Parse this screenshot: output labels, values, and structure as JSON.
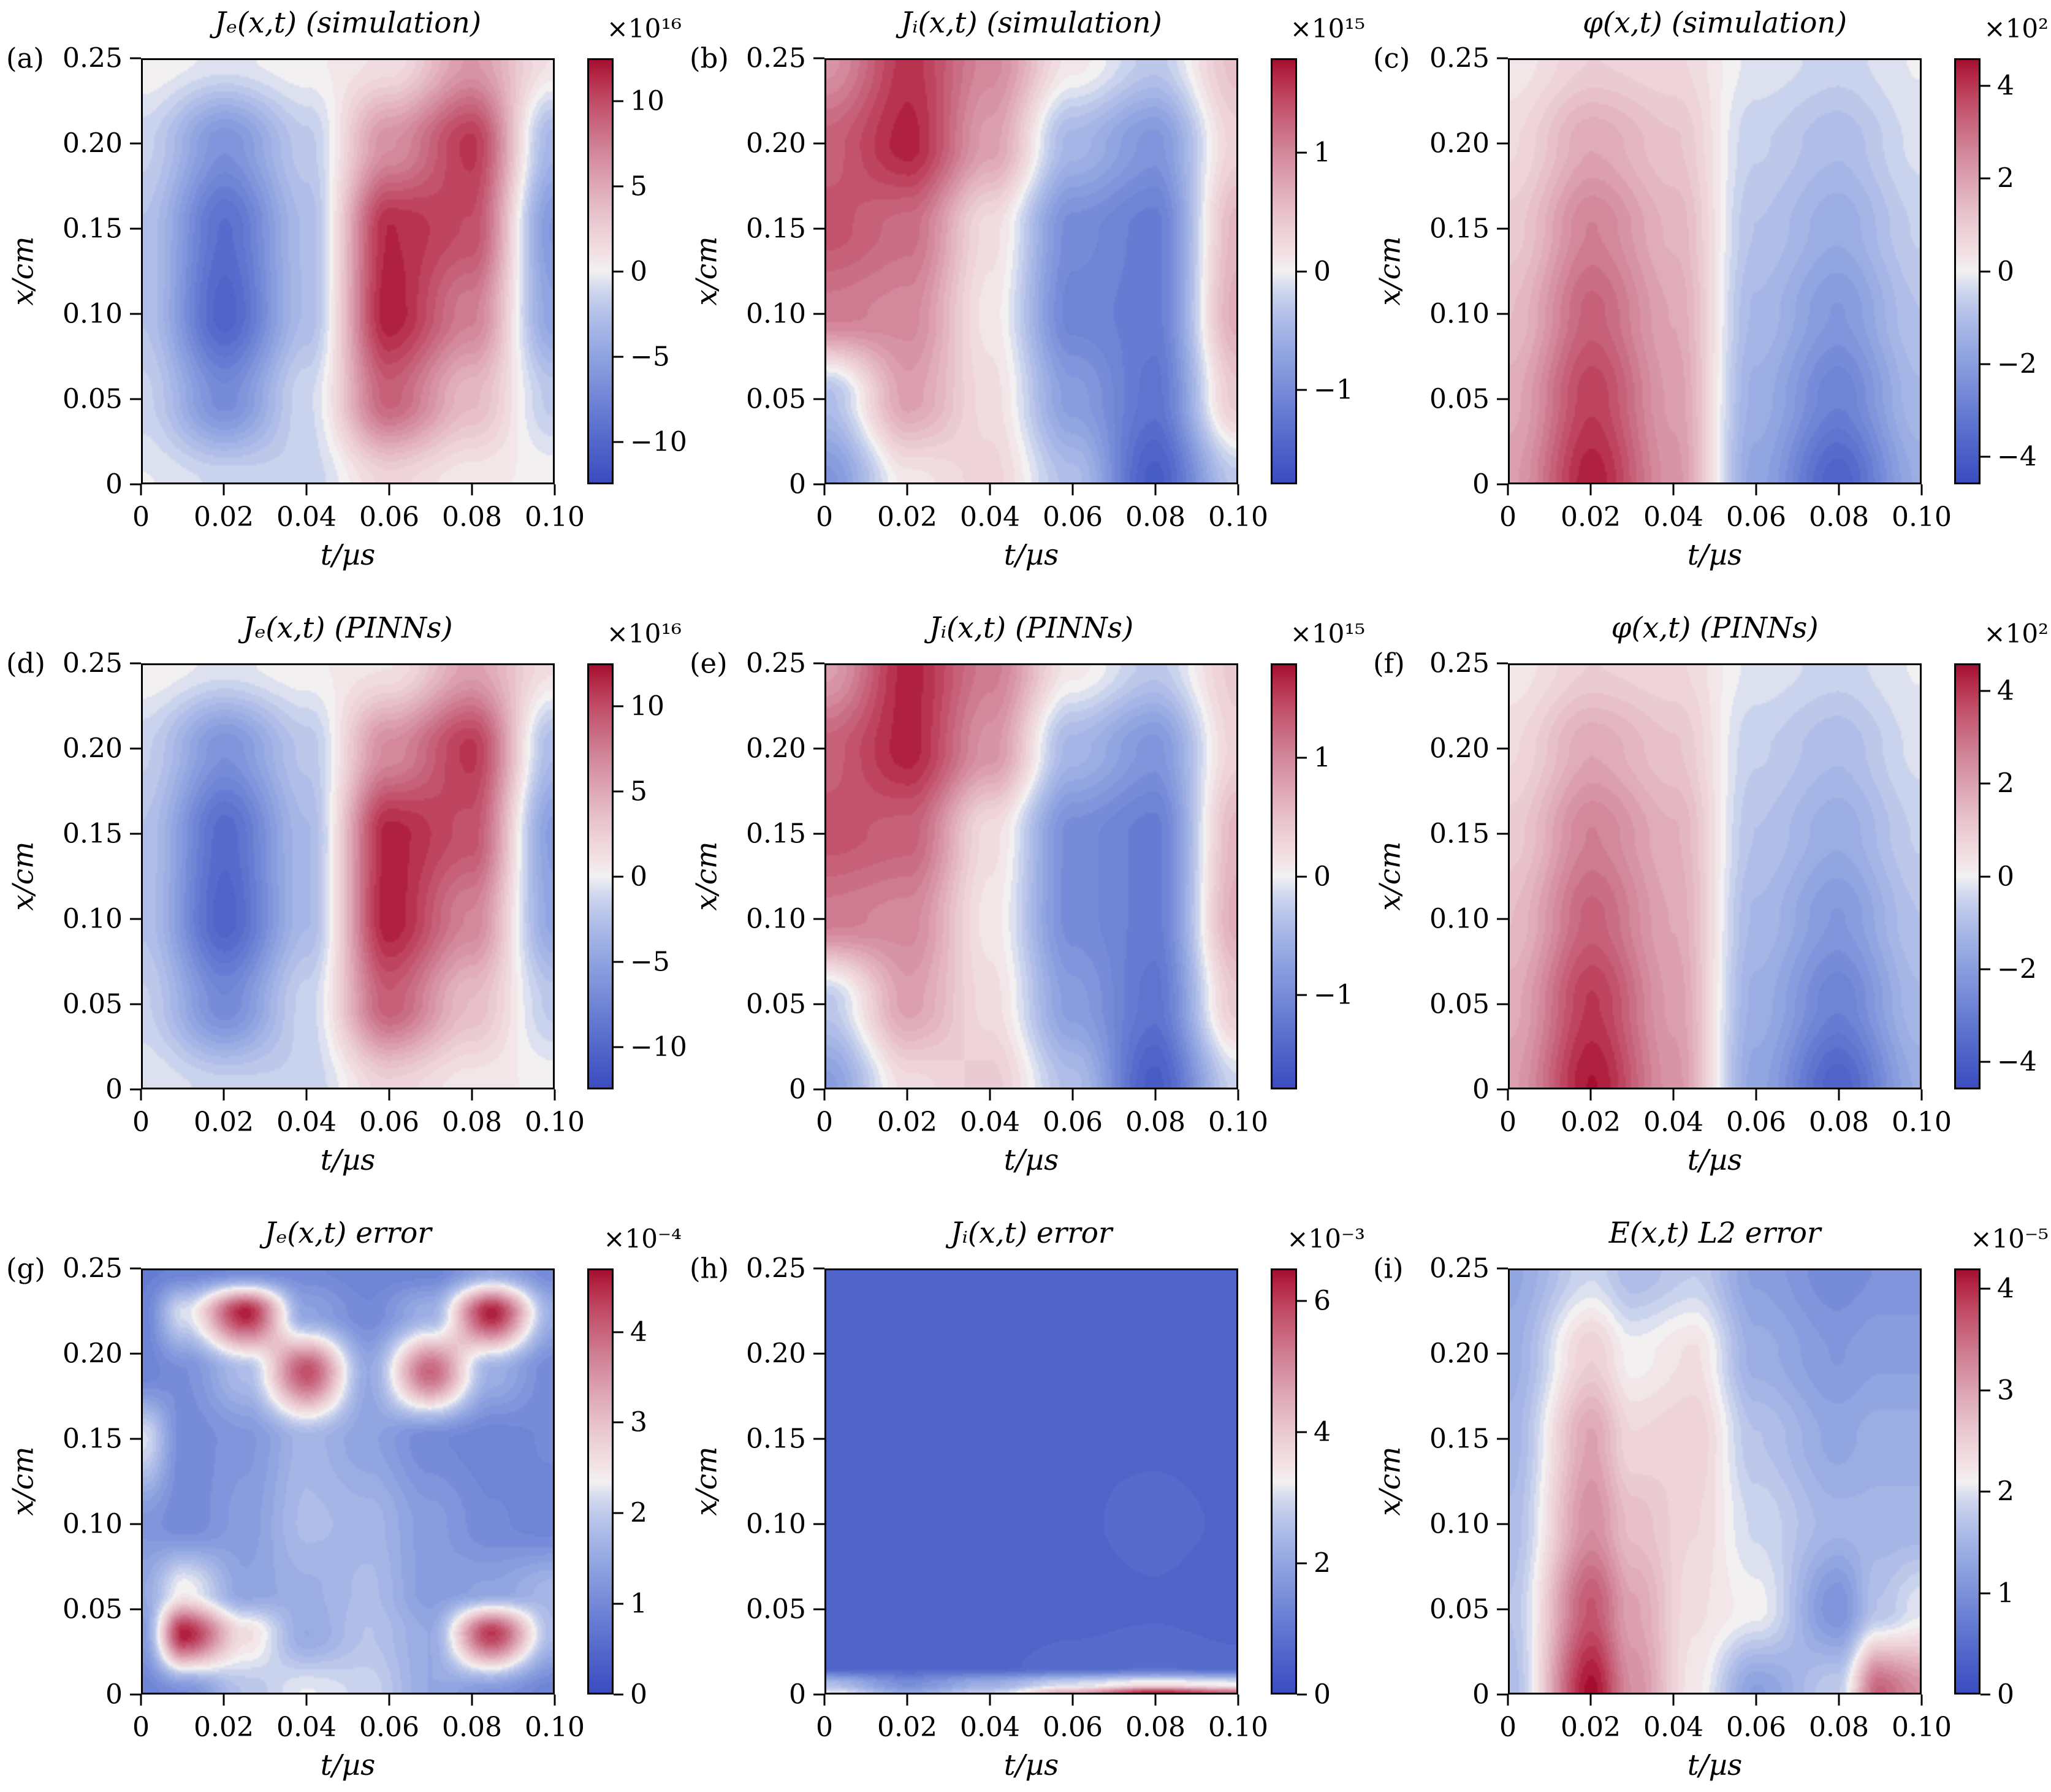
{
  "figure": {
    "axis_x_label": "t/µs",
    "axis_y_label": "x/cm",
    "x_tick_labels": [
      "0",
      "0.02",
      "0.04",
      "0.06",
      "0.08",
      "0.10"
    ],
    "x_tick_values": [
      0,
      0.02,
      0.04,
      0.06,
      0.08,
      0.1
    ],
    "y_tick_labels": [
      "0.25",
      "0.20",
      "0.15",
      "0.10",
      "0.05",
      "0"
    ],
    "y_tick_values": [
      0.25,
      0.2,
      0.15,
      0.1,
      0.05,
      0
    ],
    "x_range": [
      0,
      0.1
    ],
    "y_range": [
      0,
      0.25
    ],
    "colormap": {
      "low": "#3b4cc0",
      "mid": "#f2f0f1",
      "high": "#a50e30"
    }
  },
  "chart_data": [
    {
      "id": "a",
      "label": "(a)",
      "title": "Jₑ(x,t) (simulation)",
      "scale_label": "×10¹⁶",
      "type": "heatmap",
      "units_exponent": 16,
      "clim": [
        -12.5,
        12.5
      ],
      "colorbar_ticks": [
        {
          "label": "10",
          "value": 10
        },
        {
          "label": "5",
          "value": 5
        },
        {
          "label": "0",
          "value": 0
        },
        {
          "label": "−5",
          "value": -5
        },
        {
          "label": "−10",
          "value": -10
        }
      ],
      "x": [
        0,
        0.02,
        0.04,
        0.06,
        0.08,
        0.1
      ],
      "y": [
        0.25,
        0.2,
        0.15,
        0.1,
        0.05,
        0
      ],
      "values": [
        [
          0.3,
          -0.6,
          0.2,
          1.2,
          6,
          1
        ],
        [
          -1.5,
          -6.5,
          -2,
          6.5,
          11,
          -3.5
        ],
        [
          -2.5,
          -9.5,
          -3,
          11.5,
          10,
          -6
        ],
        [
          -2.5,
          -10.5,
          -3,
          12,
          7.5,
          -5
        ],
        [
          -1.5,
          -7,
          -1.2,
          9,
          4,
          -2
        ],
        [
          -0.3,
          -1.2,
          -1.5,
          2,
          0.5,
          0.2
        ]
      ]
    },
    {
      "id": "b",
      "label": "(b)",
      "title": "Jᵢ(x,t) (simulation)",
      "scale_label": "×10¹⁵",
      "type": "heatmap",
      "units_exponent": 15,
      "clim": [
        -1.8,
        1.8
      ],
      "colorbar_ticks": [
        {
          "label": "1",
          "value": 1
        },
        {
          "label": "0",
          "value": 0
        },
        {
          "label": "−1",
          "value": -1
        }
      ],
      "x": [
        0,
        0.02,
        0.04,
        0.06,
        0.08,
        0.1
      ],
      "y": [
        0.25,
        0.2,
        0.15,
        0.1,
        0.05,
        0
      ],
      "values": [
        [
          0.9,
          1.6,
          1.0,
          0.1,
          -0.3,
          0.5
        ],
        [
          1.3,
          1.7,
          0.8,
          -0.5,
          -0.9,
          0.3
        ],
        [
          1.4,
          1.2,
          0.2,
          -1.0,
          -1.2,
          0.6
        ],
        [
          1.1,
          1.0,
          0.1,
          -1.1,
          -1.2,
          0.7
        ],
        [
          -0.4,
          0.8,
          0.2,
          -0.8,
          -1.3,
          0.4
        ],
        [
          -0.9,
          0.1,
          0.3,
          -0.4,
          -1.6,
          -0.3
        ]
      ]
    },
    {
      "id": "c",
      "label": "(c)",
      "title": "φ(x,t) (simulation)",
      "scale_label": "×10²",
      "type": "heatmap",
      "units_exponent": 2,
      "clim": [
        -4.6,
        4.6
      ],
      "colorbar_ticks": [
        {
          "label": "4",
          "value": 4
        },
        {
          "label": "2",
          "value": 2
        },
        {
          "label": "0",
          "value": 0
        },
        {
          "label": "−2",
          "value": -2
        },
        {
          "label": "−4",
          "value": -4
        }
      ],
      "x": [
        0,
        0.02,
        0.04,
        0.06,
        0.08,
        0.1
      ],
      "y": [
        0.25,
        0.2,
        0.15,
        0.1,
        0.05,
        0
      ],
      "values": [
        [
          0.2,
          0.9,
          0.7,
          -0.2,
          -0.5,
          -0.1
        ],
        [
          0.6,
          1.9,
          1.2,
          -0.6,
          -1.1,
          -0.3
        ],
        [
          1.0,
          2.7,
          1.6,
          -0.9,
          -1.6,
          -0.6
        ],
        [
          1.4,
          3.3,
          1.9,
          -1.2,
          -2.2,
          -0.9
        ],
        [
          1.8,
          3.9,
          2.1,
          -1.5,
          -2.9,
          -1.2
        ],
        [
          2.1,
          4.4,
          2.3,
          -1.8,
          -3.9,
          -1.6
        ]
      ]
    },
    {
      "id": "d",
      "label": "(d)",
      "title": "Jₑ(x,t) (PINNs)",
      "scale_label": "×10¹⁶",
      "type": "heatmap",
      "units_exponent": 16,
      "clim": [
        -12.5,
        12.5
      ],
      "colorbar_ticks": [
        {
          "label": "10",
          "value": 10
        },
        {
          "label": "5",
          "value": 5
        },
        {
          "label": "0",
          "value": 0
        },
        {
          "label": "−5",
          "value": -5
        },
        {
          "label": "−10",
          "value": -10
        }
      ],
      "x": [
        0,
        0.02,
        0.04,
        0.06,
        0.08,
        0.1
      ],
      "y": [
        0.25,
        0.2,
        0.15,
        0.1,
        0.05,
        0
      ],
      "values": [
        [
          0.3,
          -0.6,
          0.2,
          1.0,
          5.5,
          1.2
        ],
        [
          -1.6,
          -6.5,
          -2.2,
          6.8,
          11,
          -3
        ],
        [
          -2.5,
          -9.8,
          -3.2,
          11.8,
          9.8,
          -5.5
        ],
        [
          -2.6,
          -10.5,
          -3.2,
          12,
          7.2,
          -4.8
        ],
        [
          -1.6,
          -7.2,
          -1.4,
          9.2,
          3.8,
          -2
        ],
        [
          -0.4,
          -1.4,
          -1.6,
          2.2,
          0.6,
          0.2
        ]
      ]
    },
    {
      "id": "e",
      "label": "(e)",
      "title": "Jᵢ(x,t) (PINNs)",
      "scale_label": "×10¹⁵",
      "type": "heatmap",
      "units_exponent": 15,
      "clim": [
        -1.8,
        1.8
      ],
      "colorbar_ticks": [
        {
          "label": "1",
          "value": 1
        },
        {
          "label": "0",
          "value": 0
        },
        {
          "label": "−1",
          "value": -1
        }
      ],
      "x": [
        0,
        0.02,
        0.04,
        0.06,
        0.08,
        0.1
      ],
      "y": [
        0.25,
        0.2,
        0.15,
        0.1,
        0.05,
        0
      ],
      "values": [
        [
          0.8,
          1.7,
          1.1,
          0.1,
          -0.3,
          0.4
        ],
        [
          1.3,
          1.7,
          0.9,
          -0.5,
          -0.9,
          0.3
        ],
        [
          1.4,
          1.3,
          0.2,
          -1.0,
          -1.2,
          0.6
        ],
        [
          1.1,
          1.0,
          0.1,
          -1.0,
          -1.2,
          0.7
        ],
        [
          -0.3,
          0.8,
          0.2,
          -0.8,
          -1.3,
          0.4
        ],
        [
          -0.8,
          0.2,
          0.4,
          -0.4,
          -1.6,
          -0.2
        ]
      ]
    },
    {
      "id": "f",
      "label": "(f)",
      "title": "φ(x,t) (PINNs)",
      "scale_label": "×10²",
      "type": "heatmap",
      "units_exponent": 2,
      "clim": [
        -4.6,
        4.6
      ],
      "colorbar_ticks": [
        {
          "label": "4",
          "value": 4
        },
        {
          "label": "2",
          "value": 2
        },
        {
          "label": "0",
          "value": 0
        },
        {
          "label": "−2",
          "value": -2
        },
        {
          "label": "−4",
          "value": -4
        }
      ],
      "x": [
        0,
        0.02,
        0.04,
        0.06,
        0.08,
        0.1
      ],
      "y": [
        0.25,
        0.2,
        0.15,
        0.1,
        0.05,
        0
      ],
      "values": [
        [
          0.2,
          0.9,
          0.7,
          -0.2,
          -0.5,
          -0.1
        ],
        [
          0.6,
          1.9,
          1.2,
          -0.6,
          -1.1,
          -0.3
        ],
        [
          1.0,
          2.7,
          1.7,
          -0.9,
          -1.6,
          -0.6
        ],
        [
          1.4,
          3.3,
          1.9,
          -1.2,
          -2.2,
          -0.9
        ],
        [
          1.8,
          4.0,
          2.1,
          -1.5,
          -2.9,
          -1.2
        ],
        [
          2.1,
          4.5,
          2.3,
          -1.8,
          -3.9,
          -1.6
        ]
      ]
    },
    {
      "id": "g",
      "label": "(g)",
      "title": "Jₑ(x,t) error",
      "scale_label": "×10⁻⁴",
      "type": "heatmap",
      "units_exponent": -4,
      "clim": [
        0,
        4.7
      ],
      "colorbar_ticks": [
        {
          "label": "4",
          "value": 4
        },
        {
          "label": "3",
          "value": 3
        },
        {
          "label": "2",
          "value": 2
        },
        {
          "label": "1",
          "value": 1
        },
        {
          "label": "0",
          "value": 0
        }
      ],
      "x": [
        0,
        0.01,
        0.025,
        0.04,
        0.055,
        0.07,
        0.085,
        0.1
      ],
      "y": [
        0.25,
        0.225,
        0.19,
        0.15,
        0.1,
        0.06,
        0.035,
        0
      ],
      "values": [
        [
          0.8,
          0.9,
          1.0,
          1.0,
          0.9,
          0.9,
          1.5,
          1.0
        ],
        [
          0.9,
          2.2,
          4.6,
          1.4,
          1.0,
          1.6,
          4.6,
          1.6
        ],
        [
          0.9,
          1.1,
          1.8,
          4.2,
          1.5,
          4.0,
          1.6,
          1.0
        ],
        [
          2.2,
          1.0,
          1.2,
          1.7,
          1.4,
          1.0,
          0.9,
          1.0
        ],
        [
          1.2,
          1.0,
          1.3,
          1.8,
          1.7,
          1.3,
          1.0,
          0.9
        ],
        [
          1.5,
          2.4,
          1.4,
          1.6,
          1.8,
          1.3,
          1.4,
          1.7
        ],
        [
          1.3,
          4.6,
          2.6,
          1.5,
          1.9,
          1.5,
          4.4,
          1.8
        ],
        [
          0.9,
          1.1,
          1.9,
          2.3,
          2.1,
          1.5,
          1.2,
          0.9
        ]
      ]
    },
    {
      "id": "h",
      "label": "(h)",
      "title": "Jᵢ(x,t) error",
      "scale_label": "×10⁻³",
      "type": "heatmap",
      "units_exponent": -3,
      "clim": [
        0,
        6.5
      ],
      "colorbar_ticks": [
        {
          "label": "6",
          "value": 6
        },
        {
          "label": "4",
          "value": 4
        },
        {
          "label": "2",
          "value": 2
        },
        {
          "label": "0",
          "value": 0
        }
      ],
      "x": [
        0,
        0.02,
        0.04,
        0.06,
        0.08,
        0.1
      ],
      "y": [
        0.25,
        0.2,
        0.15,
        0.1,
        0.05,
        0.015,
        0.005,
        0
      ],
      "values": [
        [
          0.5,
          0.55,
          0.5,
          0.55,
          0.5,
          0.5
        ],
        [
          0.5,
          0.55,
          0.5,
          0.6,
          0.55,
          0.5
        ],
        [
          0.5,
          0.5,
          0.55,
          0.6,
          0.6,
          0.55
        ],
        [
          0.5,
          0.5,
          0.5,
          0.6,
          0.7,
          0.6
        ],
        [
          0.5,
          0.55,
          0.5,
          0.55,
          0.6,
          0.5
        ],
        [
          0.6,
          0.6,
          0.6,
          0.7,
          0.8,
          0.7
        ],
        [
          2.5,
          1.5,
          2.2,
          3.0,
          3.5,
          3.2
        ],
        [
          3.2,
          2.0,
          2.8,
          4.5,
          6.3,
          5.5
        ]
      ]
    },
    {
      "id": "i",
      "label": "(i)",
      "title": "E(x,t) L2 error",
      "scale_label": "×10⁻⁵",
      "type": "heatmap",
      "units_exponent": -5,
      "clim": [
        0,
        4.2
      ],
      "colorbar_ticks": [
        {
          "label": "4",
          "value": 4
        },
        {
          "label": "3",
          "value": 3
        },
        {
          "label": "2",
          "value": 2
        },
        {
          "label": "1",
          "value": 1
        },
        {
          "label": "0",
          "value": 0
        }
      ],
      "x": [
        0,
        0.02,
        0.03,
        0.045,
        0.06,
        0.08,
        0.09,
        0.1
      ],
      "y": [
        0.25,
        0.2,
        0.15,
        0.1,
        0.05,
        0
      ],
      "values": [
        [
          1.3,
          1.9,
          1.6,
          1.8,
          1.2,
          0.9,
          1.0,
          1.0
        ],
        [
          1.4,
          2.5,
          2.1,
          2.3,
          1.4,
          1.1,
          1.2,
          1.2
        ],
        [
          1.5,
          3.0,
          2.4,
          2.5,
          1.7,
          1.3,
          1.4,
          1.4
        ],
        [
          1.6,
          3.2,
          2.7,
          2.4,
          1.9,
          1.5,
          1.5,
          1.5
        ],
        [
          1.7,
          3.7,
          3.0,
          2.3,
          2.1,
          1.0,
          1.7,
          2.0
        ],
        [
          1.6,
          4.2,
          3.2,
          2.2,
          1.2,
          1.8,
          3.6,
          3.2
        ]
      ]
    }
  ]
}
